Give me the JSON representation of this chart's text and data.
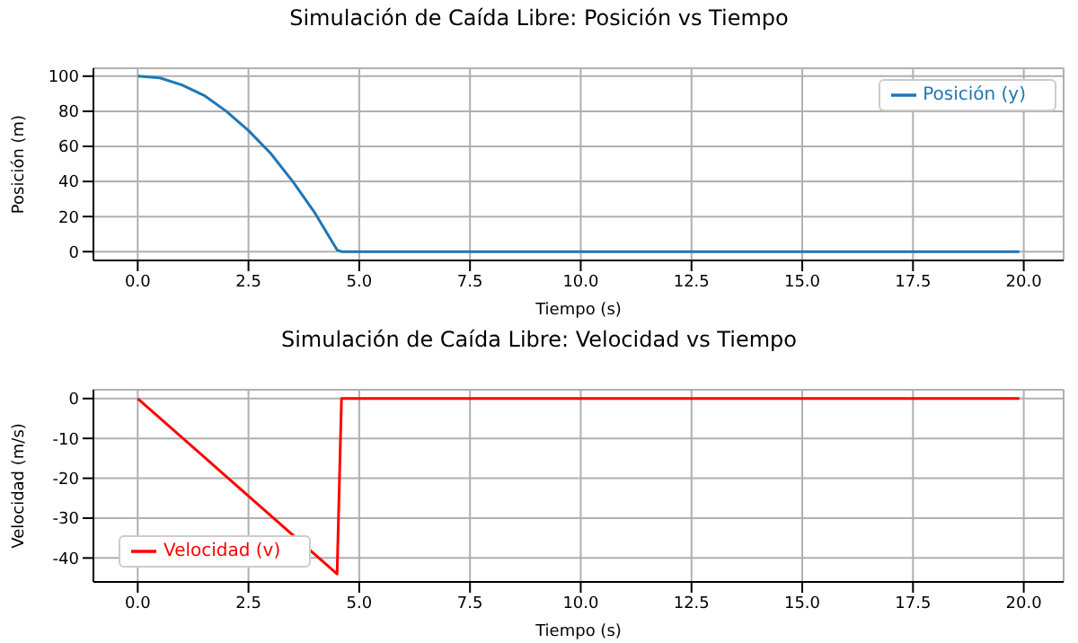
{
  "chart_data": [
    {
      "type": "line",
      "title": "Simulación de Caída Libre: Posición vs Tiempo",
      "xlabel": "Tiempo (s)",
      "ylabel": "Posición (m)",
      "x": [
        0,
        0.5,
        1,
        1.5,
        2,
        2.5,
        3,
        3.5,
        4,
        4.5,
        4.6,
        19.9
      ],
      "series": [
        {
          "name": "Posición (y)",
          "color": "#1f77b4",
          "values": [
            100,
            99,
            95,
            89,
            80,
            69,
            56,
            40,
            22,
            1,
            0,
            0
          ]
        }
      ],
      "xlim": [
        -1,
        20.9
      ],
      "xticks": [
        {
          "value": 0,
          "label": "0.0"
        },
        {
          "value": 2.5,
          "label": "2.5"
        },
        {
          "value": 5,
          "label": "5.0"
        },
        {
          "value": 7.5,
          "label": "7.5"
        },
        {
          "value": 10,
          "label": "10.0"
        },
        {
          "value": 12.5,
          "label": "12.5"
        },
        {
          "value": 15,
          "label": "15.0"
        },
        {
          "value": 17.5,
          "label": "17.5"
        },
        {
          "value": 20,
          "label": "20.0"
        }
      ],
      "ylim": [
        -5,
        104.5
      ],
      "yticks": [
        0,
        20,
        40,
        60,
        80,
        100
      ],
      "grid": true,
      "legend": "top right",
      "marker": "none",
      "line_style": "solid"
    },
    {
      "type": "line",
      "title": "Simulación de Caída Libre: Velocidad vs Tiempo",
      "xlabel": "Tiempo (s)",
      "ylabel": "Velocidad (m/s)",
      "x": [
        0,
        4.5,
        4.6,
        19.9
      ],
      "series": [
        {
          "name": "Velocidad (v)",
          "color": "#ff0000",
          "values": [
            0,
            -44,
            0,
            0
          ]
        }
      ],
      "xlim": [
        -1,
        20.9
      ],
      "xticks": [
        {
          "value": 0,
          "label": "0.0"
        },
        {
          "value": 2.5,
          "label": "2.5"
        },
        {
          "value": 5,
          "label": "5.0"
        },
        {
          "value": 7.5,
          "label": "7.5"
        },
        {
          "value": 10,
          "label": "10.0"
        },
        {
          "value": 12.5,
          "label": "12.5"
        },
        {
          "value": 15,
          "label": "15.0"
        },
        {
          "value": 17.5,
          "label": "17.5"
        },
        {
          "value": 20,
          "label": "20.0"
        }
      ],
      "ylim": [
        -46,
        2.2
      ],
      "yticks": [
        -40,
        -30,
        -20,
        -10,
        0
      ],
      "grid": true,
      "legend": "bottom left",
      "marker": "none",
      "line_style": "solid"
    }
  ]
}
